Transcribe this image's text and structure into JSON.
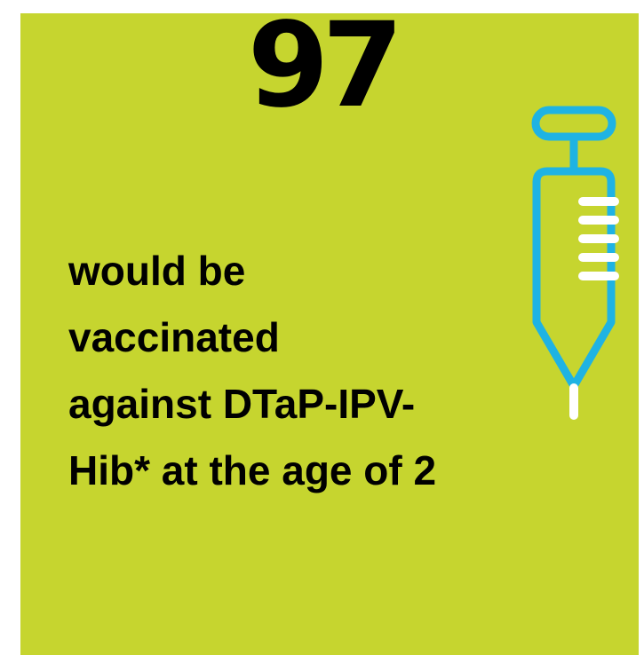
{
  "stat": {
    "number": "97",
    "caption_lines": [
      "would be",
      "vaccinated",
      "against DTaP-IPV-",
      "Hib* at the age of 2"
    ]
  },
  "colors": {
    "background": "#c6d52f",
    "text": "#000000",
    "syringe_outline": "#1fb3e3",
    "syringe_marks": "#ffffff"
  },
  "icons": {
    "syringe": "syringe-icon"
  }
}
